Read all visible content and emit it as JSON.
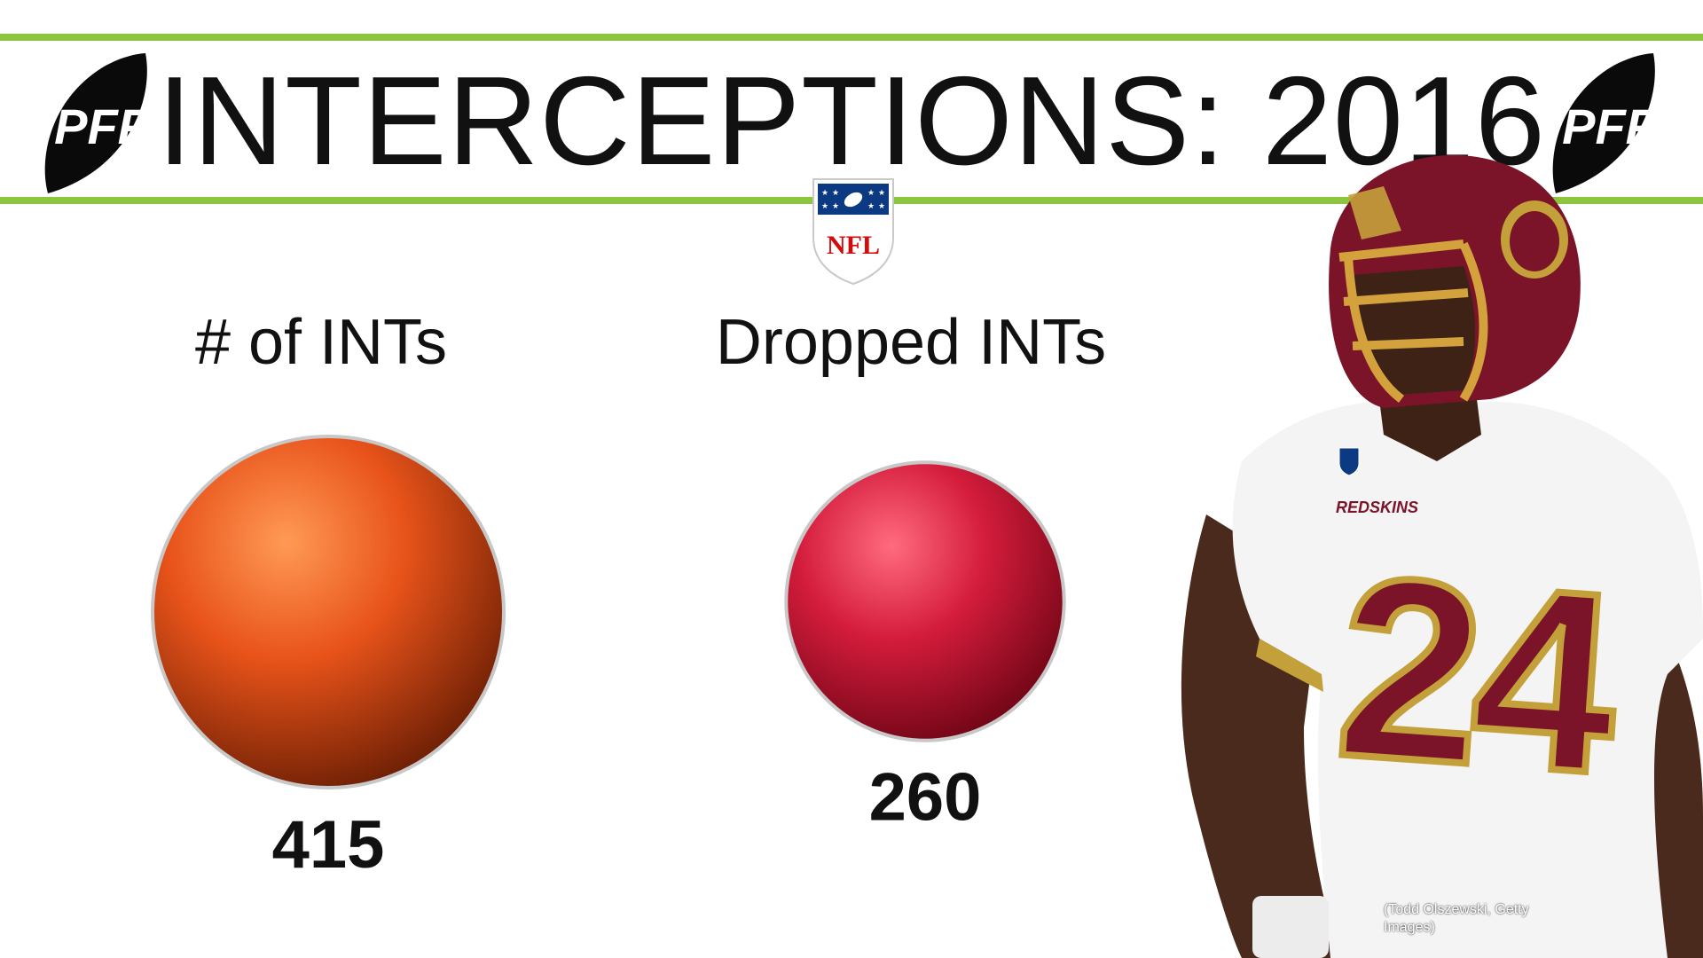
{
  "header": {
    "title": "INTERCEPTIONS: 2016",
    "brand_logo": "PFF",
    "league_logo": "NFL",
    "accent_color": "#8cc63f"
  },
  "chart_data": {
    "type": "bubble",
    "series": [
      {
        "name": "# of INTs",
        "value": 415,
        "color": "#e8531a"
      },
      {
        "name": "Dropped INTs",
        "value": 260,
        "color": "#d41c3c"
      }
    ]
  },
  "photo": {
    "jersey_wordmark": "REDSKINS",
    "jersey_number": "24",
    "credit": "(Todd Olszewski, Getty Images)"
  }
}
